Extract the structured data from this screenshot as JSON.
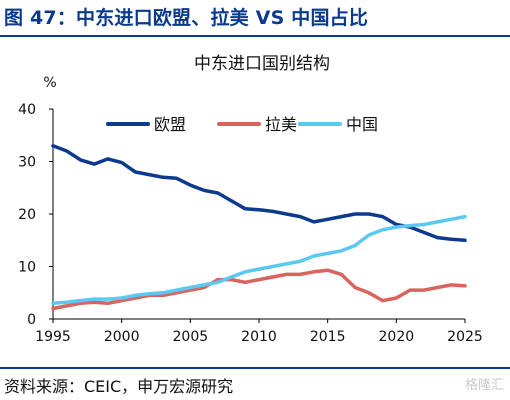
{
  "figure": {
    "title": "图 47：中东进口欧盟、拉美 VS 中国占比",
    "source": "资料来源：CEIC，申万宏源研究",
    "watermark": "格隆汇"
  },
  "colors": {
    "eu": "#0c3a8f",
    "latam": "#d9635f",
    "china": "#5bc8f2",
    "accent": "#0a3a8c"
  },
  "chart_data": {
    "type": "line",
    "title": "中东进口国别结构",
    "ylabel": "%",
    "xlabel": "",
    "xlim": [
      1995,
      2025
    ],
    "ylim": [
      0,
      40
    ],
    "x_ticks": [
      1995,
      2000,
      2005,
      2010,
      2015,
      2020,
      2025
    ],
    "y_ticks": [
      0,
      10,
      20,
      30,
      40
    ],
    "grid": false,
    "legend_position": "top-center",
    "series": [
      {
        "name": "欧盟",
        "color": "#0c3a8f",
        "points": [
          [
            1995,
            33
          ],
          [
            1996,
            32
          ],
          [
            1997,
            30.3
          ],
          [
            1998,
            29.5
          ],
          [
            1999,
            30.5
          ],
          [
            2000,
            29.8
          ],
          [
            2001,
            28
          ],
          [
            2002,
            27.5
          ],
          [
            2003,
            27
          ],
          [
            2004,
            26.8
          ],
          [
            2005,
            25.5
          ],
          [
            2006,
            24.5
          ],
          [
            2007,
            24
          ],
          [
            2008,
            22.5
          ],
          [
            2009,
            21
          ],
          [
            2010,
            20.8
          ],
          [
            2011,
            20.5
          ],
          [
            2012,
            20
          ],
          [
            2013,
            19.5
          ],
          [
            2014,
            18.5
          ],
          [
            2015,
            19
          ],
          [
            2016,
            19.5
          ],
          [
            2017,
            20
          ],
          [
            2018,
            20
          ],
          [
            2019,
            19.5
          ],
          [
            2020,
            18
          ],
          [
            2021,
            17.5
          ],
          [
            2022,
            16.5
          ],
          [
            2023,
            15.5
          ],
          [
            2024,
            15.2
          ],
          [
            2025,
            15
          ]
        ]
      },
      {
        "name": "拉美",
        "color": "#d9635f",
        "points": [
          [
            1995,
            2
          ],
          [
            1996,
            2.5
          ],
          [
            1997,
            3
          ],
          [
            1998,
            3.2
          ],
          [
            1999,
            3
          ],
          [
            2000,
            3.5
          ],
          [
            2001,
            4
          ],
          [
            2002,
            4.5
          ],
          [
            2003,
            4.5
          ],
          [
            2004,
            5
          ],
          [
            2005,
            5.5
          ],
          [
            2006,
            6
          ],
          [
            2007,
            7.5
          ],
          [
            2008,
            7.5
          ],
          [
            2009,
            7
          ],
          [
            2010,
            7.5
          ],
          [
            2011,
            8
          ],
          [
            2012,
            8.5
          ],
          [
            2013,
            8.5
          ],
          [
            2014,
            9
          ],
          [
            2015,
            9.3
          ],
          [
            2016,
            8.5
          ],
          [
            2017,
            6
          ],
          [
            2018,
            5
          ],
          [
            2019,
            3.5
          ],
          [
            2020,
            4
          ],
          [
            2021,
            5.5
          ],
          [
            2022,
            5.5
          ],
          [
            2023,
            6
          ],
          [
            2024,
            6.5
          ],
          [
            2025,
            6.3
          ]
        ]
      },
      {
        "name": "中国",
        "color": "#5bc8f2",
        "points": [
          [
            1995,
            3
          ],
          [
            1996,
            3.2
          ],
          [
            1997,
            3.5
          ],
          [
            1998,
            3.8
          ],
          [
            1999,
            3.8
          ],
          [
            2000,
            4
          ],
          [
            2001,
            4.5
          ],
          [
            2002,
            4.8
          ],
          [
            2003,
            5
          ],
          [
            2004,
            5.5
          ],
          [
            2005,
            6
          ],
          [
            2006,
            6.5
          ],
          [
            2007,
            7
          ],
          [
            2008,
            8
          ],
          [
            2009,
            9
          ],
          [
            2010,
            9.5
          ],
          [
            2011,
            10
          ],
          [
            2012,
            10.5
          ],
          [
            2013,
            11
          ],
          [
            2014,
            12
          ],
          [
            2015,
            12.5
          ],
          [
            2016,
            13
          ],
          [
            2017,
            14
          ],
          [
            2018,
            16
          ],
          [
            2019,
            17
          ],
          [
            2020,
            17.5
          ],
          [
            2021,
            17.8
          ],
          [
            2022,
            18
          ],
          [
            2023,
            18.5
          ],
          [
            2024,
            19
          ],
          [
            2025,
            19.5
          ]
        ]
      }
    ]
  }
}
